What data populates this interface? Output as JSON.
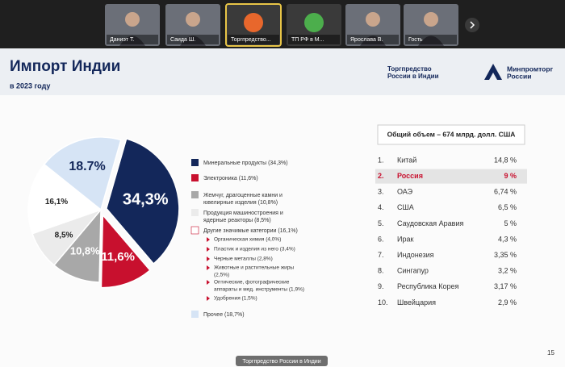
{
  "participants": [
    "Даниэт Т.",
    "Саида Ш.",
    "Торгпредство...",
    "ТП РФ в М...",
    "Ярослава В.",
    "Гость"
  ],
  "slide": {
    "title": "Импорт Индии",
    "subtitle": "в 2023 году",
    "org_left": [
      "Торгпредство",
      "России в Индии"
    ],
    "org_right": [
      "Минпромторг",
      "России"
    ],
    "pie": {
      "type": "pie",
      "values": [
        34.3,
        11.6,
        10.8,
        8.5,
        16.1,
        18.7
      ],
      "value_labels": [
        "34,3%",
        "11,6%",
        "10,8%",
        "8,5%",
        "16,1%",
        "18.7%"
      ],
      "colors": [
        "#13275a",
        "#c8102e",
        "#a8a8a8",
        "#ebebeb",
        "#ffffff",
        "#d6e4f5"
      ]
    },
    "legend": [
      [
        "Минеральные продукты (34,3%)"
      ],
      [
        "Электроника (11,6%)"
      ],
      [
        "Жемчуг, драгоценные камни и",
        "ювелирные изделия (10,8%)"
      ],
      [
        "Продукция машиностроения и",
        "ядерные реакторы (8,5%)"
      ],
      [
        "Другие значимые категории (16,1%)"
      ],
      [
        "Прочее (18,7%)"
      ]
    ],
    "details": [
      [
        "Органическая химия (4,0%)"
      ],
      [
        "Пластик и изделия из него (3,4%)"
      ],
      [
        "Черные металлы (2,8%)"
      ],
      [
        "Животные и растительные жиры",
        "(2,5%)"
      ],
      [
        "Оптические, фотографические",
        "аппараты и мед. инструменты (1,9%)"
      ],
      [
        "Удобрения (1,5%)"
      ]
    ],
    "table": {
      "header": "Общий объем – 674 млрд. долл. США",
      "rows": [
        [
          "1.",
          "Китай",
          "14,8 %"
        ],
        [
          "2.",
          "Россия",
          "9 %"
        ],
        [
          "3.",
          "ОАЭ",
          "6,74 %"
        ],
        [
          "4.",
          "США",
          "6,5 %"
        ],
        [
          "5.",
          "Саудовская Аравия",
          "5 %"
        ],
        [
          "6.",
          "Ирак",
          "4,3 %"
        ],
        [
          "7.",
          "Индонезия",
          "3,35 %"
        ],
        [
          "8.",
          "Сингапур",
          "3,2 %"
        ],
        [
          "9.",
          "Республика Корея",
          "3,17 %"
        ],
        [
          "10.",
          "Швейцария",
          "2,9 %"
        ]
      ],
      "highlight_row": 1
    },
    "page_number": "15"
  },
  "caption": "Торгпредство России в Индии"
}
